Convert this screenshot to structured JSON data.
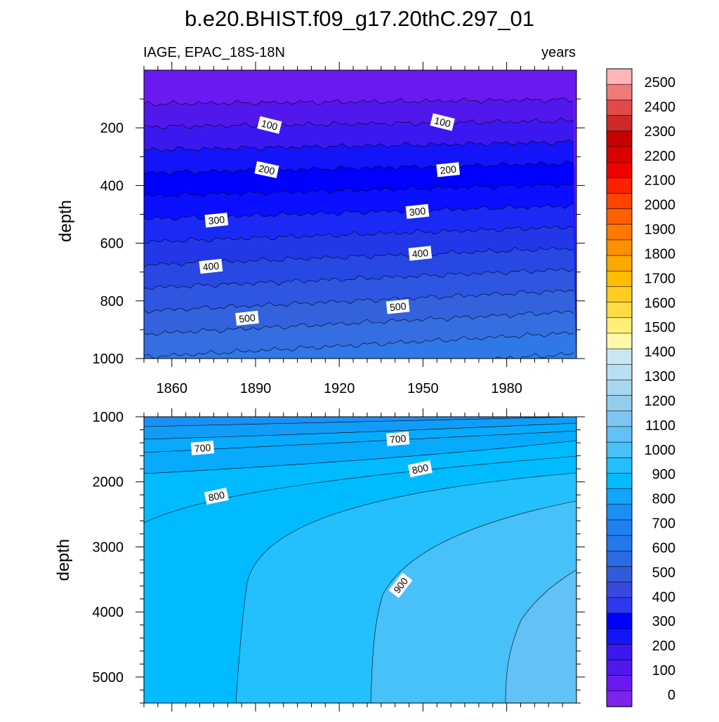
{
  "chart_data": [
    {
      "type": "contour",
      "panel": "upper",
      "title": "b.e20.BHIST.f09_g17.20thC.297_01",
      "left_subtitle": "IAGE, EPAC_18S-18N",
      "right_subtitle": "years",
      "xlabel": "",
      "ylabel": "depth",
      "xlim": [
        1850,
        2005
      ],
      "ylim": [
        0,
        1000
      ],
      "y_reversed": true,
      "x_ticks": [
        "1860",
        "1890",
        "1920",
        "1950",
        "1980"
      ],
      "y_ticks": [
        "200",
        "400",
        "600",
        "800",
        "1000"
      ],
      "contour_line_labels": [
        {
          "text": "100",
          "year": 1895,
          "depth": 190
        },
        {
          "text": "100",
          "year": 1957,
          "depth": 180
        },
        {
          "text": "200",
          "year": 1894,
          "depth": 345
        },
        {
          "text": "200",
          "year": 1959,
          "depth": 345
        },
        {
          "text": "300",
          "year": 1876,
          "depth": 520
        },
        {
          "text": "300",
          "year": 1948,
          "depth": 490
        },
        {
          "text": "400",
          "year": 1874,
          "depth": 680
        },
        {
          "text": "400",
          "year": 1949,
          "depth": 635
        },
        {
          "text": "500",
          "year": 1887,
          "depth": 860
        },
        {
          "text": "500",
          "year": 1941,
          "depth": 820
        }
      ]
    },
    {
      "type": "contour",
      "panel": "lower",
      "xlabel": "",
      "ylabel": "depth",
      "xlim": [
        1850,
        2005
      ],
      "ylim": [
        1000,
        5400
      ],
      "y_reversed": true,
      "y_ticks": [
        "1000",
        "2000",
        "3000",
        "4000",
        "5000"
      ],
      "contour_line_labels": [
        {
          "text": "700",
          "year": 1871,
          "depth": 1480
        },
        {
          "text": "700",
          "year": 1941,
          "depth": 1340
        },
        {
          "text": "800",
          "year": 1876,
          "depth": 2220
        },
        {
          "text": "800",
          "year": 1949,
          "depth": 1800
        },
        {
          "text": "900",
          "year": 1942,
          "depth": 3590
        }
      ]
    }
  ],
  "colorbar": {
    "labels": [
      "2500",
      "2400",
      "2300",
      "2200",
      "2100",
      "2000",
      "1900",
      "1800",
      "1700",
      "1600",
      "1500",
      "1400",
      "1300",
      "1200",
      "1100",
      "1000",
      "900",
      "800",
      "700",
      "600",
      "500",
      "400",
      "300",
      "200",
      "100",
      "0"
    ],
    "colors_top_to_bottom": [
      "#ffb6b6",
      "#f07a7a",
      "#e04a4a",
      "#d02828",
      "#c80000",
      "#dc0000",
      "#f00000",
      "#ff2000",
      "#ff4400",
      "#ff6000",
      "#ff7800",
      "#ff9000",
      "#ffa800",
      "#ffbc00",
      "#ffcc22",
      "#ffdc44",
      "#ffee77",
      "#fff9aa",
      "#c9e6f4",
      "#b8e0f2",
      "#a6d7ef",
      "#93cdee",
      "#7ec5f3",
      "#62c1f5",
      "#48c0f8",
      "#24bffd",
      "#00bbff",
      "#11a5fb",
      "#1a90f5",
      "#1f80f0",
      "#2478eb",
      "#2a6ae3",
      "#325ada",
      "#3848de",
      "#2e38ee",
      "#0000ff",
      "#1414f8",
      "#3c18f0",
      "#5018ea",
      "#6a1af0",
      "#7d24ec"
    ]
  },
  "bands_upper": [
    "#6a1af0",
    "#5018ea",
    "#3c18f0",
    "#1414f8",
    "#0000ff",
    "#0a10ff",
    "#1a2af4",
    "#2238e8",
    "#2848e4",
    "#2e56e0",
    "#3462dd",
    "#346ee0",
    "#2f78e8",
    "#2a80f0",
    "#2588f5"
  ],
  "bands_lower": [
    "#1a90f5",
    "#119cf8",
    "#08aafb",
    "#00bbff",
    "#24bffd",
    "#48c0f8",
    "#62c1f5"
  ]
}
